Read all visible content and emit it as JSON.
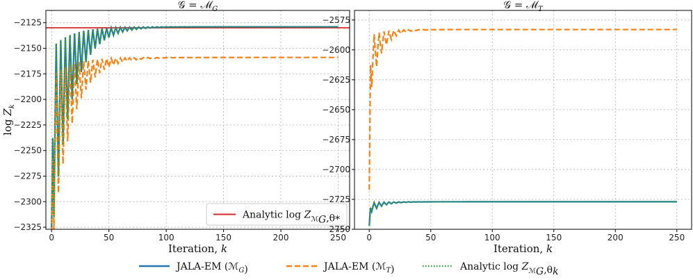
{
  "chart_data": [
    {
      "type": "line",
      "title": "𝒢 = ℳ_G",
      "xlabel": "Iteration, k",
      "ylabel": "log Z_k",
      "xlim": [
        -5,
        260
      ],
      "ylim": [
        -2327,
        -2113
      ],
      "xticks": [
        0,
        50,
        100,
        150,
        200,
        250
      ],
      "yticks": [
        -2125,
        -2150,
        -2175,
        -2200,
        -2225,
        -2250,
        -2275,
        -2300,
        -2325
      ],
      "grid": true,
      "legend": {
        "position": "lower-right",
        "entries": [
          "Analytic log Z_{ℳ_G,θ*}"
        ]
      },
      "series": [
        {
          "name": "JALA-EM (ℳ_G)",
          "style": "solid",
          "color": "#1f77b4",
          "final": -2129,
          "start": -2325,
          "amplitude": 210,
          "decay": 0.06,
          "period": 4
        },
        {
          "name": "JALA-EM (ℳ_T)",
          "style": "dashed",
          "color": "#ff7f0e",
          "final": -2159,
          "start": -2330,
          "amplitude": 190,
          "decay": 0.06,
          "period": 4
        },
        {
          "name": "Analytic log Z_{ℳ_G,θ_k}",
          "style": "dotted",
          "color": "#2ca02c",
          "final": -2129,
          "start": -2325,
          "amplitude": 210,
          "decay": 0.06,
          "period": 4
        }
      ],
      "hline": {
        "name": "Analytic log Z_{ℳ_G,θ*}",
        "y": -2130,
        "color": "#d62728"
      },
      "n_points": 251
    },
    {
      "type": "line",
      "title": "𝒢 = ℳ_T",
      "xlabel": "Iteration, k",
      "ylabel": "",
      "xlim": [
        -12,
        262
      ],
      "ylim": [
        -2750,
        -2567
      ],
      "xticks": [
        0,
        50,
        100,
        150,
        200,
        250
      ],
      "yticks": [
        -2575,
        -2600,
        -2625,
        -2650,
        -2675,
        -2700,
        -2725,
        -2750
      ],
      "grid": true,
      "series": [
        {
          "name": "JALA-EM (ℳ_G)",
          "style": "solid",
          "color": "#1f77b4",
          "final": -2727,
          "start": -2747,
          "amplitude": 10,
          "decay": 0.1,
          "period": 4
        },
        {
          "name": "JALA-EM (ℳ_T)",
          "style": "dashed",
          "color": "#ff7f0e",
          "final": -2583,
          "start": -2717,
          "amplitude": 60,
          "decay": 0.11,
          "period": 4
        },
        {
          "name": "Analytic log Z_{ℳ_G,θ_k}",
          "style": "dotted",
          "color": "#2ca02c",
          "final": -2727,
          "start": -2747,
          "amplitude": 10,
          "decay": 0.1,
          "period": 4
        }
      ],
      "n_points": 251
    }
  ],
  "legend": {
    "entries": [
      {
        "label": "JALA-EM (ℳ_G)",
        "color": "#1f77b4",
        "style": "solid"
      },
      {
        "label": "JALA-EM (ℳ_T)",
        "color": "#ff7f0e",
        "style": "dashed"
      },
      {
        "label": "Analytic log Z_{ℳ_G,θ_k}",
        "color": "#2ca02c",
        "style": "dotted"
      }
    ]
  }
}
